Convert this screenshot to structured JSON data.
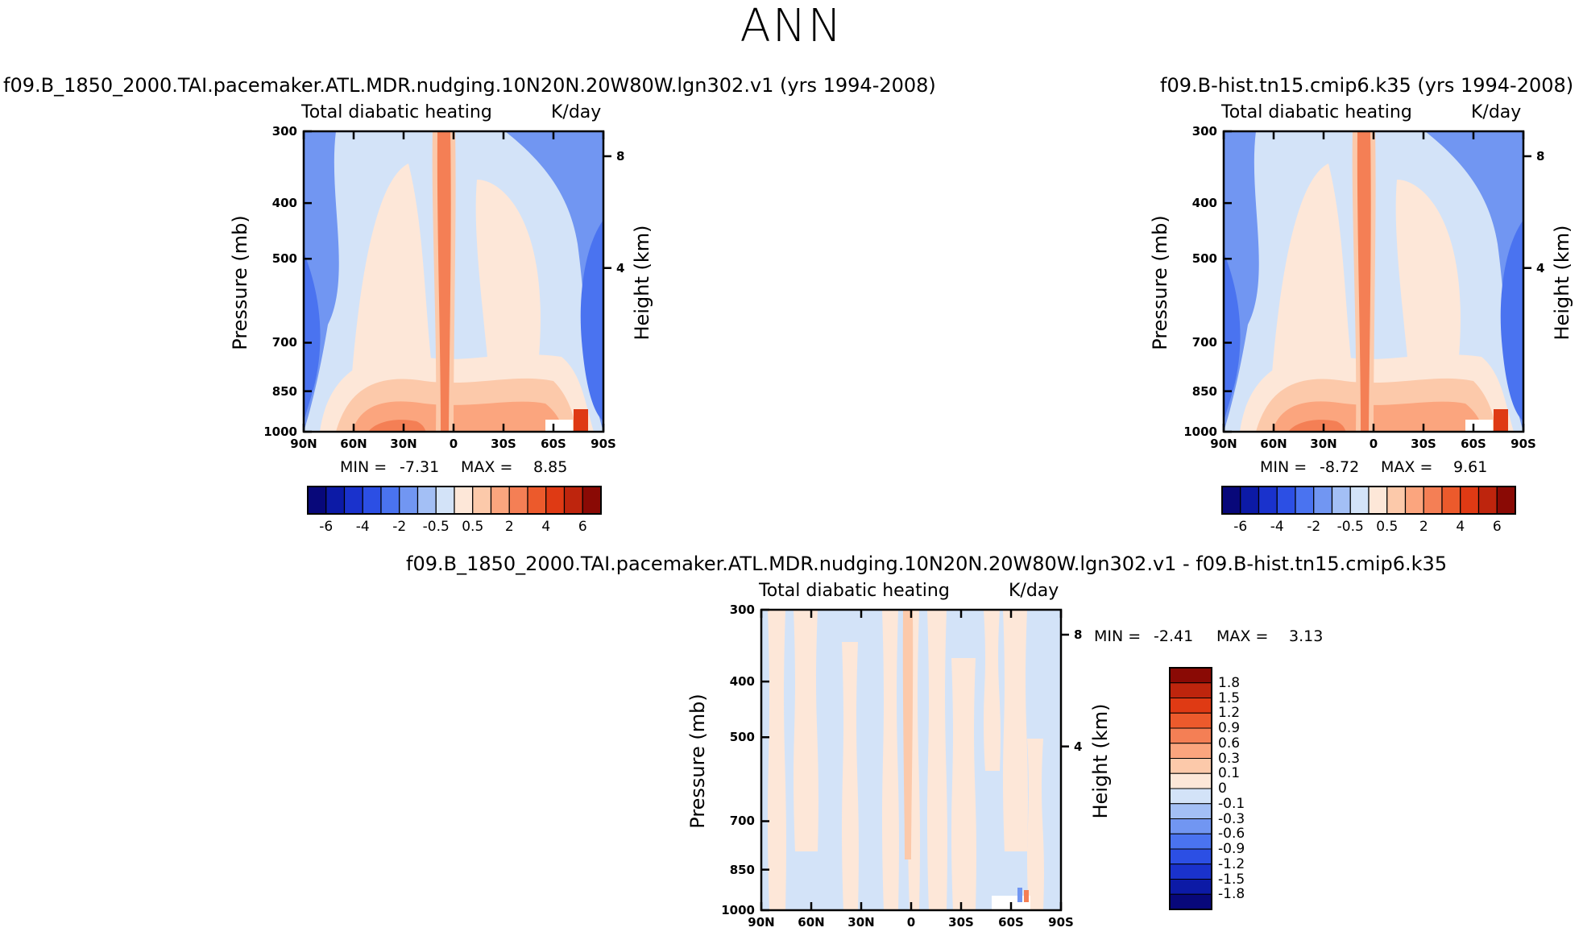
{
  "figure": {
    "title": "ANN"
  },
  "chart_data": [
    {
      "type": "heatmap",
      "case_title": "f09.B_1850_2000.TAI.pacemaker.ATL.MDR.nudging.10N20N.20W80W.lgn302.v1 (yrs 1994-2008)",
      "title": "Total diabatic heating",
      "units": "K/day",
      "xlabel": "",
      "ylabel": "Pressure (mb)",
      "ylabel_right": "Height (km)",
      "x_ticks": [
        "90N",
        "60N",
        "30N",
        "0",
        "30S",
        "60S",
        "90S"
      ],
      "y_ticks": [
        "300",
        "400",
        "500",
        "700",
        "850",
        "1000"
      ],
      "y_right_ticks": [
        "8",
        "4"
      ],
      "min_label": "MIN =",
      "min": "-7.31",
      "max_label": "MAX =",
      "max": "8.85",
      "colorbar_labels": [
        "-6",
        "-4",
        "-2",
        "-0.5",
        "0.5",
        "2",
        "4",
        "6"
      ]
    },
    {
      "type": "heatmap",
      "case_title": "f09.B-hist.tn15.cmip6.k35 (yrs 1994-2008)",
      "title": "Total diabatic heating",
      "units": "K/day",
      "xlabel": "",
      "ylabel": "Pressure (mb)",
      "ylabel_right": "Height (km)",
      "x_ticks": [
        "90N",
        "60N",
        "30N",
        "0",
        "30S",
        "60S",
        "90S"
      ],
      "y_ticks": [
        "300",
        "400",
        "500",
        "700",
        "850",
        "1000"
      ],
      "y_right_ticks": [
        "8",
        "4"
      ],
      "min_label": "MIN =",
      "min": "-8.72",
      "max_label": "MAX =",
      "max": "9.61",
      "colorbar_labels": [
        "-6",
        "-4",
        "-2",
        "-0.5",
        "0.5",
        "2",
        "4",
        "6"
      ]
    },
    {
      "type": "heatmap",
      "case_title": "f09.B_1850_2000.TAI.pacemaker.ATL.MDR.nudging.10N20N.20W80W.lgn302.v1 - f09.B-hist.tn15.cmip6.k35",
      "title": "Total diabatic heating",
      "units": "K/day",
      "xlabel": "",
      "ylabel": "Pressure (mb)",
      "ylabel_right": "Height (km)",
      "x_ticks": [
        "90N",
        "60N",
        "30N",
        "0",
        "30S",
        "60S",
        "90S"
      ],
      "y_ticks": [
        "300",
        "400",
        "500",
        "700",
        "850",
        "1000"
      ],
      "y_right_ticks": [
        "8",
        "4"
      ],
      "min_label": "MIN =",
      "min": "-2.41",
      "max_label": "MAX =",
      "max": "3.13",
      "colorbar_labels": [
        "1.8",
        "1.5",
        "1.2",
        "0.9",
        "0.6",
        "0.3",
        "0.1",
        "0",
        "-0.1",
        "-0.3",
        "-0.6",
        "-0.9",
        "-1.2",
        "-1.5",
        "-1.8"
      ]
    }
  ],
  "colors": {
    "cb16": [
      "#08087a",
      "#0c1aa6",
      "#1a32cc",
      "#2c4fe4",
      "#4a73f0",
      "#7196f2",
      "#a3bff5",
      "#d3e3f8",
      "#fde7d8",
      "#fcc9aa",
      "#fba57e",
      "#f47f55",
      "#ec5a2c",
      "#df3a14",
      "#be250d",
      "#8a0a05"
    ],
    "field_palette": [
      "#4a73f0",
      "#7196f2",
      "#a3bff5",
      "#d3e3f8",
      "#fde7d8",
      "#fcc9aa",
      "#fba57e",
      "#f47f55",
      "#ec5a2c",
      "#df3a14",
      "#be250d"
    ]
  }
}
